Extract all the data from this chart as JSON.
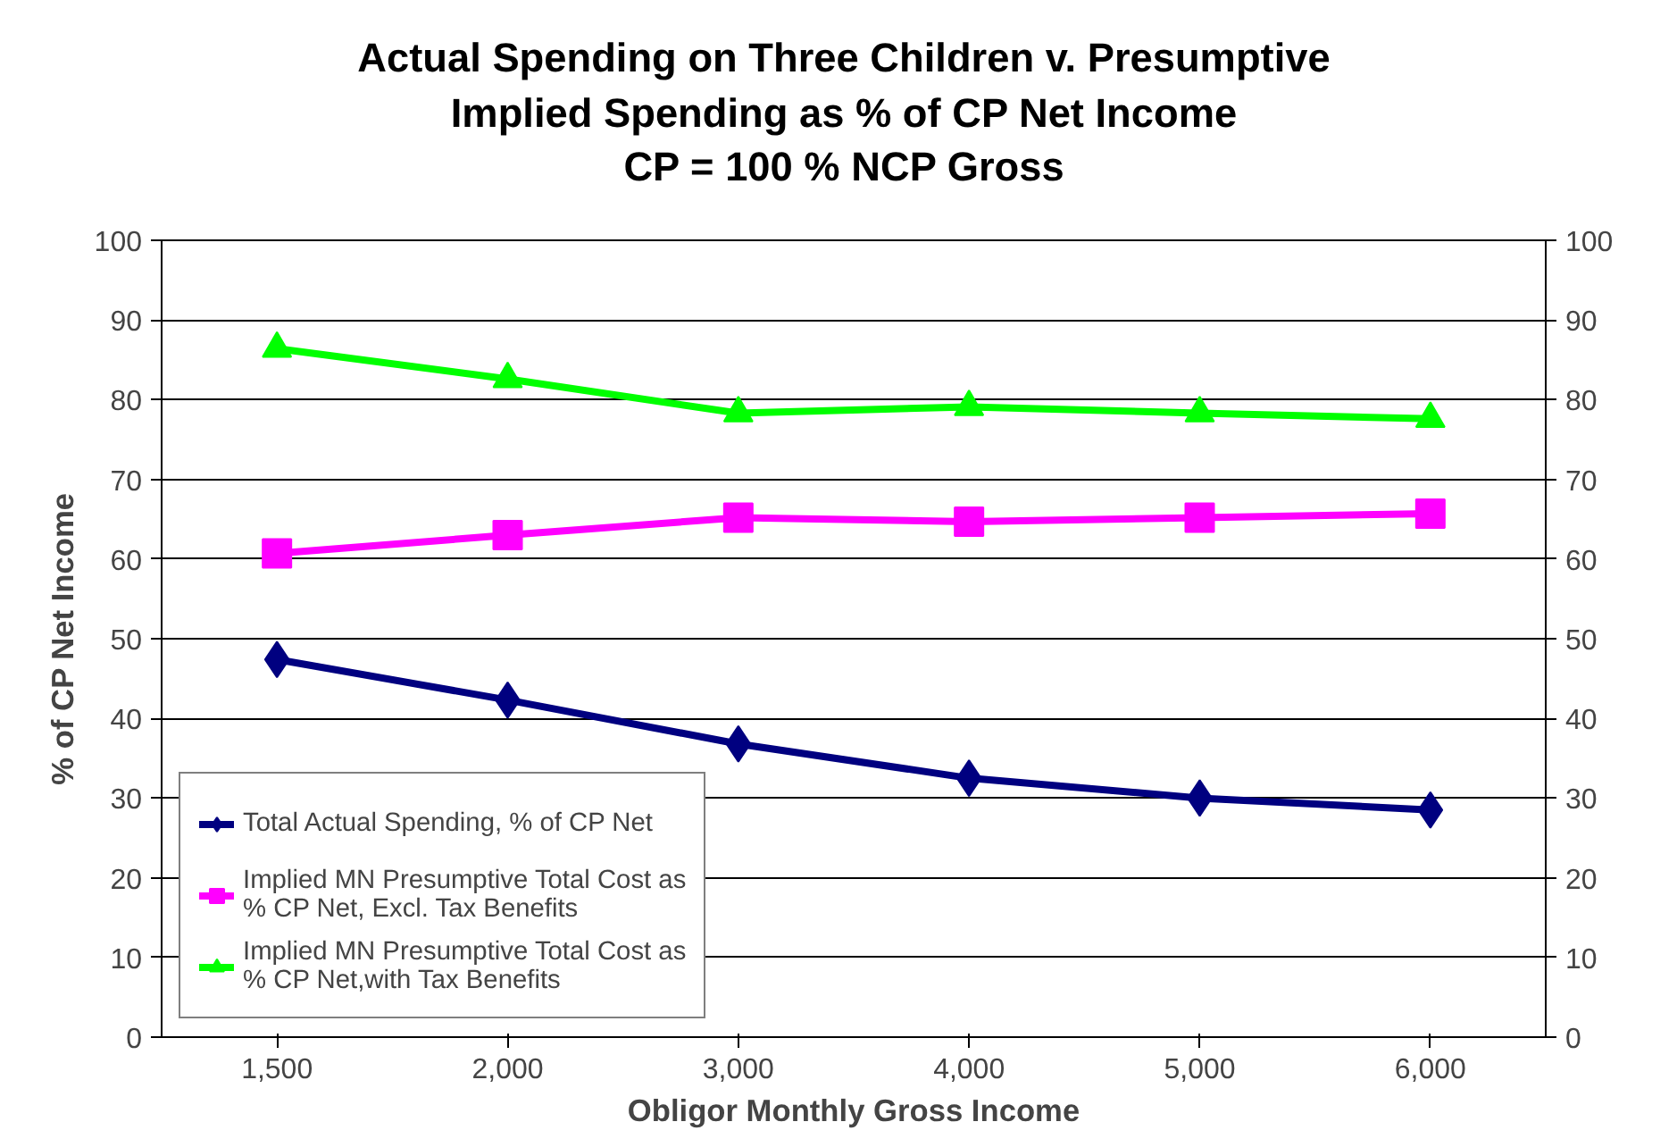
{
  "chart_data": {
    "type": "line",
    "title": "Actual Spending on Three Children v. Presumptive\nImplied Spending as % of CP Net Income\nCP = 100 % NCP Gross",
    "xlabel": "Obligor Monthly Gross Income",
    "ylabel": "% of CP Net Income",
    "categories": [
      "1,500",
      "2,000",
      "3,000",
      "4,000",
      "5,000",
      "6,000"
    ],
    "series": [
      {
        "name": "Total Actual Spending, % of CP Net",
        "color": "#000080",
        "marker": "diamond",
        "values": [
          47.4,
          42.3,
          36.8,
          32.5,
          30.0,
          28.5
        ]
      },
      {
        "name": "Implied MN Presumptive Total Cost as\n% CP Net, Excl. Tax Benefits",
        "color": "#ff00ff",
        "marker": "square",
        "values": [
          60.7,
          63.0,
          65.2,
          64.7,
          65.2,
          65.7
        ]
      },
      {
        "name": "Implied MN Presumptive Total Cost as\n% CP Net,with Tax Benefits",
        "color": "#00ff00",
        "marker": "triangle",
        "values": [
          86.4,
          82.6,
          78.3,
          79.1,
          78.3,
          77.6
        ]
      }
    ],
    "ylim": [
      0,
      100
    ],
    "yticks": [
      0,
      10,
      20,
      30,
      40,
      50,
      60,
      70,
      80,
      90,
      100
    ],
    "y2lim": [
      0,
      100
    ],
    "y2ticks": [
      0,
      10,
      20,
      30,
      40,
      50,
      60,
      70,
      80,
      90,
      100
    ],
    "grid": "y",
    "legend": "bottom left",
    "line_style": "solid"
  }
}
